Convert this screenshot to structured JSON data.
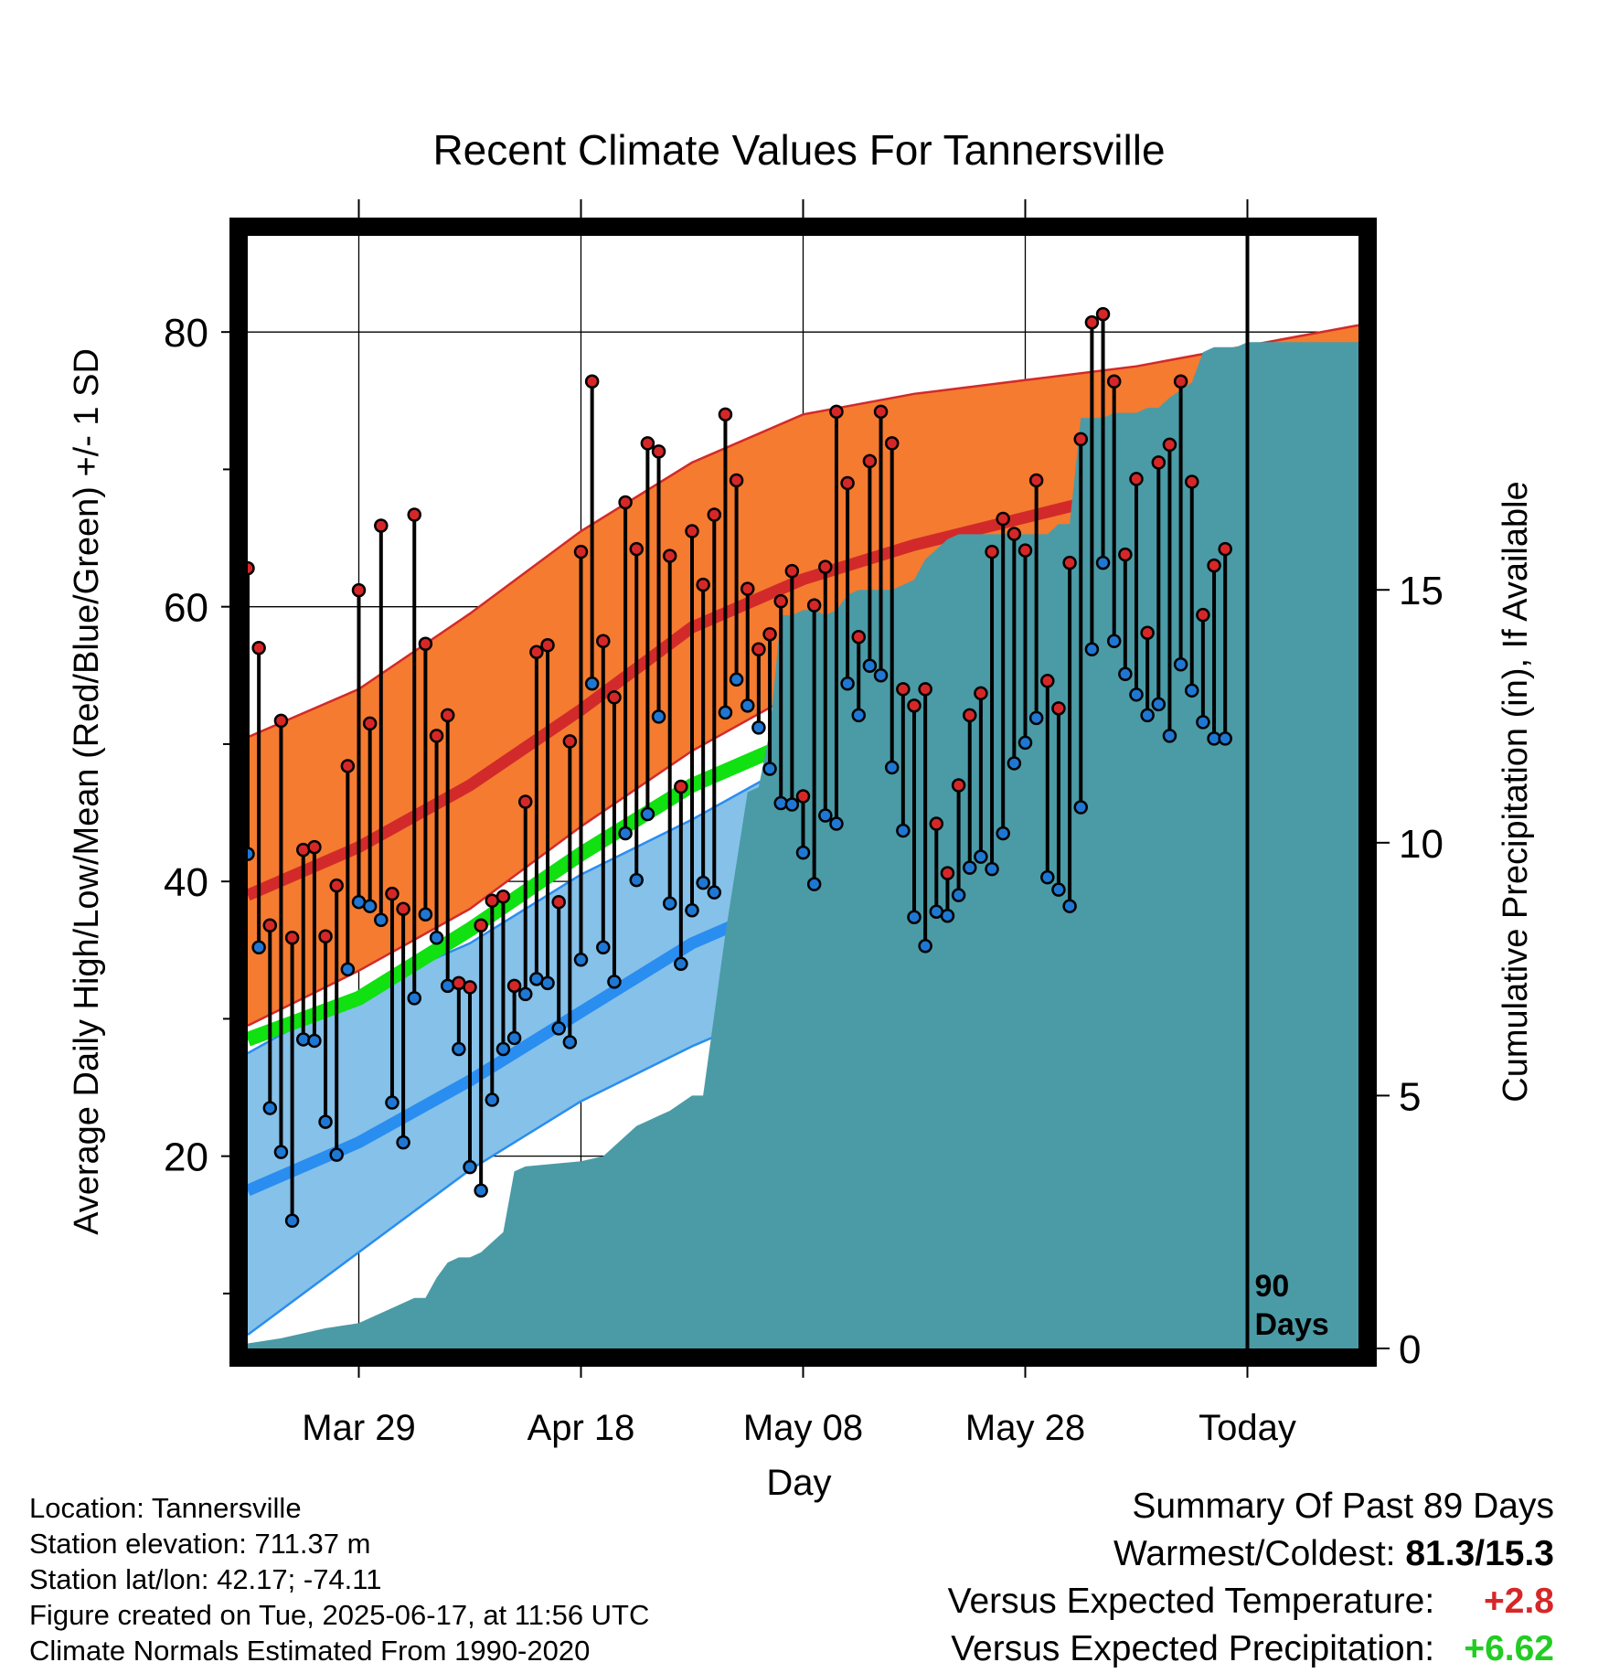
{
  "chart_data": {
    "type": "line",
    "title": "Recent Climate Values For Tannersville",
    "xlabel": "Day",
    "ylabel": "Average Daily High/Low/Mean (Red/Blue/Green) +/- 1 SD",
    "y2label": "Cumulative Precipitation (in), If Available",
    "ylim": [
      6,
      87
    ],
    "y2lim": [
      0,
      22
    ],
    "x_range": [
      -10,
      90
    ],
    "x_ticks": [
      {
        "day": 0,
        "label": "Mar 29"
      },
      {
        "day": 20,
        "label": "Apr 18"
      },
      {
        "day": 40,
        "label": "May 08"
      },
      {
        "day": 60,
        "label": "May 28"
      },
      {
        "day": 80,
        "label": "Today"
      }
    ],
    "y_ticks": [
      20,
      40,
      60,
      80
    ],
    "y_minor_ticks": [
      10,
      30,
      50,
      70
    ],
    "y2_ticks": [
      0,
      5,
      10,
      15
    ],
    "grid": true,
    "today_marker": {
      "day": 80,
      "label_line1": "90",
      "label_line2": "Days"
    },
    "normals": {
      "days": [
        -10,
        0,
        10,
        20,
        30,
        40,
        50,
        60,
        70,
        80,
        90
      ],
      "high_mean": [
        39,
        42.5,
        47,
        52.5,
        58.5,
        62,
        64.5,
        66.5,
        68.5,
        71,
        73.5
      ],
      "high_upper": [
        50.5,
        54,
        59.5,
        65.5,
        70.5,
        74,
        75.5,
        76.5,
        77.5,
        79,
        80.5
      ],
      "high_lower": [
        29.5,
        33.5,
        38,
        44,
        49.5,
        54,
        57,
        59.5,
        61.5,
        64,
        66.5
      ],
      "low_mean": [
        17.5,
        21,
        25.5,
        30.5,
        35.5,
        39,
        42.5,
        45,
        47.5,
        50,
        52
      ],
      "low_upper": [
        27.5,
        32,
        35.5,
        40.5,
        44.5,
        49,
        51.5,
        53,
        54.5,
        56.5,
        58.5
      ],
      "low_lower": [
        7,
        13,
        19,
        24,
        28,
        31.5,
        34.5,
        37.5,
        40.5,
        43.5,
        46.5
      ],
      "avg_mean": [
        28.5,
        31.5,
        36.5,
        42,
        47,
        50.5,
        53,
        55.5,
        58,
        60.5,
        63
      ]
    },
    "precip": {
      "days": [
        -10,
        -7,
        -5,
        -3,
        0,
        2,
        3,
        5,
        6,
        7,
        8,
        9,
        10,
        11,
        12,
        13,
        14,
        15,
        20,
        22,
        25,
        26,
        27,
        28,
        30,
        31,
        33,
        35,
        36,
        37,
        38,
        39,
        40,
        41,
        42,
        43,
        44,
        45,
        46,
        47,
        48,
        50,
        51,
        53,
        54,
        55,
        56,
        57,
        58,
        59,
        60,
        62,
        63,
        64,
        65,
        67,
        68,
        70,
        71,
        72,
        73,
        75,
        76,
        77,
        78,
        79,
        80,
        90
      ],
      "values": [
        0.1,
        0.2,
        0.3,
        0.4,
        0.5,
        0.7,
        0.8,
        1.0,
        1.0,
        1.4,
        1.7,
        1.8,
        1.8,
        1.9,
        2.1,
        2.3,
        3.5,
        3.6,
        3.7,
        3.8,
        4.4,
        4.5,
        4.6,
        4.7,
        5.0,
        5.0,
        8.2,
        11.0,
        11.1,
        12.2,
        14.5,
        14.5,
        14.6,
        14.6,
        14.5,
        14.6,
        14.9,
        15.0,
        15.0,
        15.0,
        15.0,
        15.2,
        15.6,
        16.0,
        16.1,
        16.1,
        16.1,
        16.1,
        16.1,
        16.1,
        16.1,
        16.1,
        16.3,
        16.3,
        18.4,
        18.4,
        18.5,
        18.5,
        18.6,
        18.6,
        18.8,
        19.1,
        19.7,
        19.8,
        19.8,
        19.8,
        19.9,
        19.9
      ]
    },
    "series": [
      {
        "name": "High",
        "color": "#d62728",
        "values": [
          62.8,
          57.0,
          36.8,
          51.7,
          35.9,
          42.3,
          42.5,
          36.0,
          39.7,
          48.4,
          61.2,
          51.5,
          65.9,
          39.1,
          38.0,
          66.7,
          57.3,
          50.6,
          52.1,
          32.6,
          32.3,
          36.8,
          38.6,
          38.9,
          32.4,
          45.8,
          56.7,
          57.2,
          38.5,
          50.2,
          64.0,
          76.4,
          57.5,
          53.4,
          67.6,
          64.2,
          71.9,
          71.3,
          63.7,
          46.9,
          65.5,
          61.6,
          66.7,
          74.0,
          69.2,
          61.3,
          56.9,
          58.0,
          60.4,
          62.6,
          46.2,
          60.1,
          62.9,
          74.2,
          69.0,
          57.8,
          70.6,
          74.2,
          71.9,
          54.0,
          52.8,
          54.0,
          44.2,
          40.6,
          47.0,
          52.1,
          53.7,
          64.0,
          66.4,
          65.3,
          64.1,
          69.2,
          54.6,
          52.6,
          63.2,
          72.2,
          80.7,
          81.3,
          76.4,
          63.8,
          69.3,
          58.1,
          70.5,
          71.8,
          76.4,
          69.1,
          59.4,
          63.0,
          64.2
        ]
      },
      {
        "name": "Low",
        "color": "#1f77d4",
        "values": [
          42.0,
          35.2,
          23.5,
          20.3,
          15.3,
          28.5,
          28.4,
          22.5,
          20.1,
          33.6,
          38.5,
          38.2,
          37.2,
          23.9,
          21.0,
          31.5,
          37.6,
          35.9,
          32.4,
          27.8,
          19.2,
          17.5,
          24.1,
          27.8,
          28.6,
          31.8,
          32.9,
          32.6,
          29.3,
          28.3,
          34.3,
          54.4,
          35.2,
          32.7,
          43.5,
          40.1,
          44.9,
          52.0,
          38.4,
          34.0,
          37.9,
          39.9,
          39.2,
          52.3,
          54.7,
          52.8,
          51.2,
          48.2,
          45.7,
          45.6,
          42.1,
          39.8,
          44.8,
          44.2,
          54.4,
          52.1,
          55.7,
          55.0,
          48.3,
          43.7,
          37.4,
          35.3,
          37.8,
          37.5,
          39.0,
          41.0,
          41.8,
          40.9,
          43.5,
          48.6,
          50.1,
          51.9,
          40.3,
          39.4,
          38.2,
          45.4,
          56.9,
          63.2,
          57.5,
          55.1,
          53.6,
          52.1,
          52.9,
          50.6,
          55.8,
          53.9,
          51.6,
          50.4,
          50.4
        ]
      }
    ]
  },
  "info": {
    "location": "Location: Tannersville",
    "elevation": "Station elevation: 711.37 m",
    "latlon": "Station lat/lon: 42.17; -74.11",
    "created": "Figure created on Tue, 2025-06-17, at 11:56 UTC",
    "normals": "Climate Normals Estimated From 1990-2020"
  },
  "summary": {
    "title": "Summary Of Past 89 Days",
    "warm_cold_label": "Warmest/Coldest:",
    "warm_cold_value": "81.3/15.3",
    "temp_label": "Versus Expected Temperature:",
    "temp_value": "+2.8",
    "temp_color": "#d62728",
    "precip_label": "Versus Expected Precipitation:",
    "precip_value": "+6.62",
    "precip_color": "#22cc22"
  },
  "colors": {
    "high_band": "#f47b30",
    "high_line": "#d22a2a",
    "low_band": "#85c1e9",
    "low_line": "#2a8df0",
    "mean_line": "#11e011",
    "precip_fill": "#4a9ba6"
  }
}
